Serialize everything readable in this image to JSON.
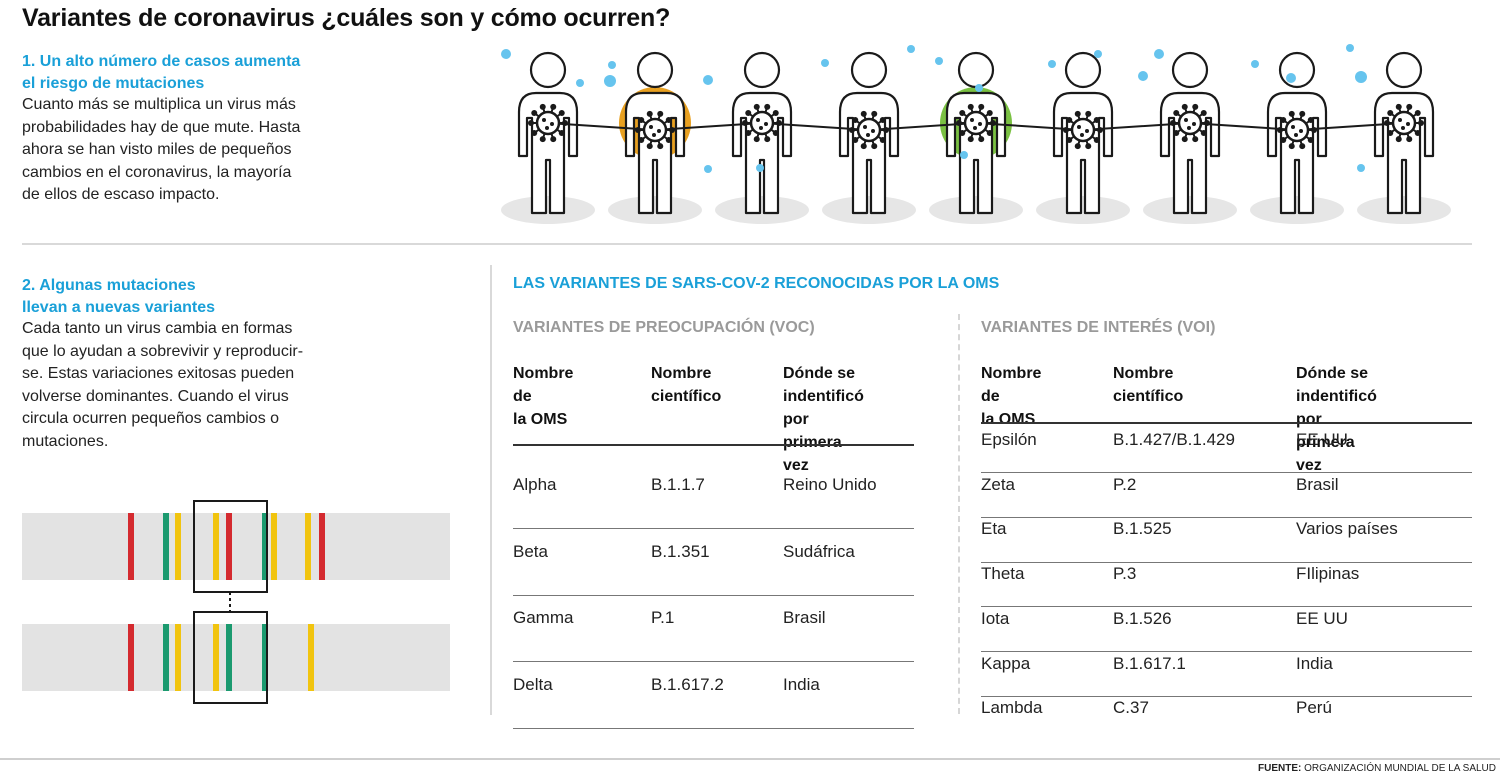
{
  "title": "Variantes de coronavirus ¿cuáles son y cómo ocurren?",
  "section1": {
    "heading": [
      "1. Un alto número de casos aumenta",
      "el riesgo de mutaciones"
    ],
    "body": [
      "Cuanto más se multiplica un virus más",
      "probabilidades hay de que mute. Hasta",
      "ahora se han visto miles de pequeños",
      "cambios en el coronavirus, la mayoría",
      "de ellos de escaso impacto."
    ]
  },
  "section2": {
    "heading": [
      "2. Algunas mutaciones",
      "llevan a nuevas variantes"
    ],
    "body": [
      "Cada tanto un virus cambia en formas",
      "que lo ayudan a sobrevivir y reproducir-",
      "se. Estas variaciones exitosas pueden",
      "volverse dominantes. Cuando el virus",
      "circula ocurren pequeños cambios o",
      "mutaciones."
    ]
  },
  "people_figure": {
    "count": 9,
    "highlight_colors": [
      "none",
      "#e8a020",
      "none",
      "none",
      "#7ac142",
      "none",
      "none",
      "none",
      "none"
    ],
    "dot_color": "#66c4ee",
    "icon": "virus-icon"
  },
  "dna_figure": {
    "strand_color": "#e3e3e3",
    "mark_colors": {
      "red": "#d42a2f",
      "green": "#1b9a6f",
      "yellow": "#f1c40f"
    },
    "top_strand": [
      "red",
      "green",
      "yellow",
      "yellow",
      "red",
      "green",
      "yellow",
      "yellow",
      "red"
    ],
    "bottom_strand": [
      "red",
      "green",
      "yellow",
      "yellow",
      "green",
      "green",
      "yellow"
    ]
  },
  "oms": {
    "title": "LAS VARIANTES DE SARS-COV-2 RECONOCIDAS POR LA OMS",
    "voc": {
      "title": "VARIANTES DE PREOCUPACIÓN (VOC)",
      "headers": [
        [
          "Nombre de",
          "la OMS"
        ],
        [
          "Nombre",
          "científico"
        ],
        [
          "Dónde se",
          "indentificó por",
          "primera vez"
        ]
      ],
      "rows": [
        [
          "Alpha",
          "B.1.1.7",
          "Reino Unido"
        ],
        [
          "Beta",
          "B.1.351",
          "Sudáfrica"
        ],
        [
          "Gamma",
          "P.1",
          "Brasil"
        ],
        [
          "Delta",
          "B.1.617.2",
          "India"
        ]
      ]
    },
    "voi": {
      "title": "VARIANTES DE INTERÉS (VOI)",
      "headers": [
        [
          "Nombre de",
          "la OMS"
        ],
        [
          "Nombre",
          "científico"
        ],
        [
          "Dónde se indentificó",
          "por primera vez"
        ]
      ],
      "rows": [
        [
          "Epsilón",
          "B.1.427/B.1.429",
          "EE UU"
        ],
        [
          "Zeta",
          "P.2",
          "Brasil"
        ],
        [
          "Eta",
          "B.1.525",
          "Varios países"
        ],
        [
          "Theta",
          "P.3",
          "FIlipinas"
        ],
        [
          "Iota",
          "B.1.526",
          "EE UU"
        ],
        [
          "Kappa",
          "B.1.617.1",
          "India"
        ],
        [
          "Lambda",
          "C.37",
          "Perú"
        ]
      ]
    }
  },
  "footer": {
    "label": "FUENTE:",
    "source": "ORGANIZACIÓN MUNDIAL DE LA SALUD"
  }
}
